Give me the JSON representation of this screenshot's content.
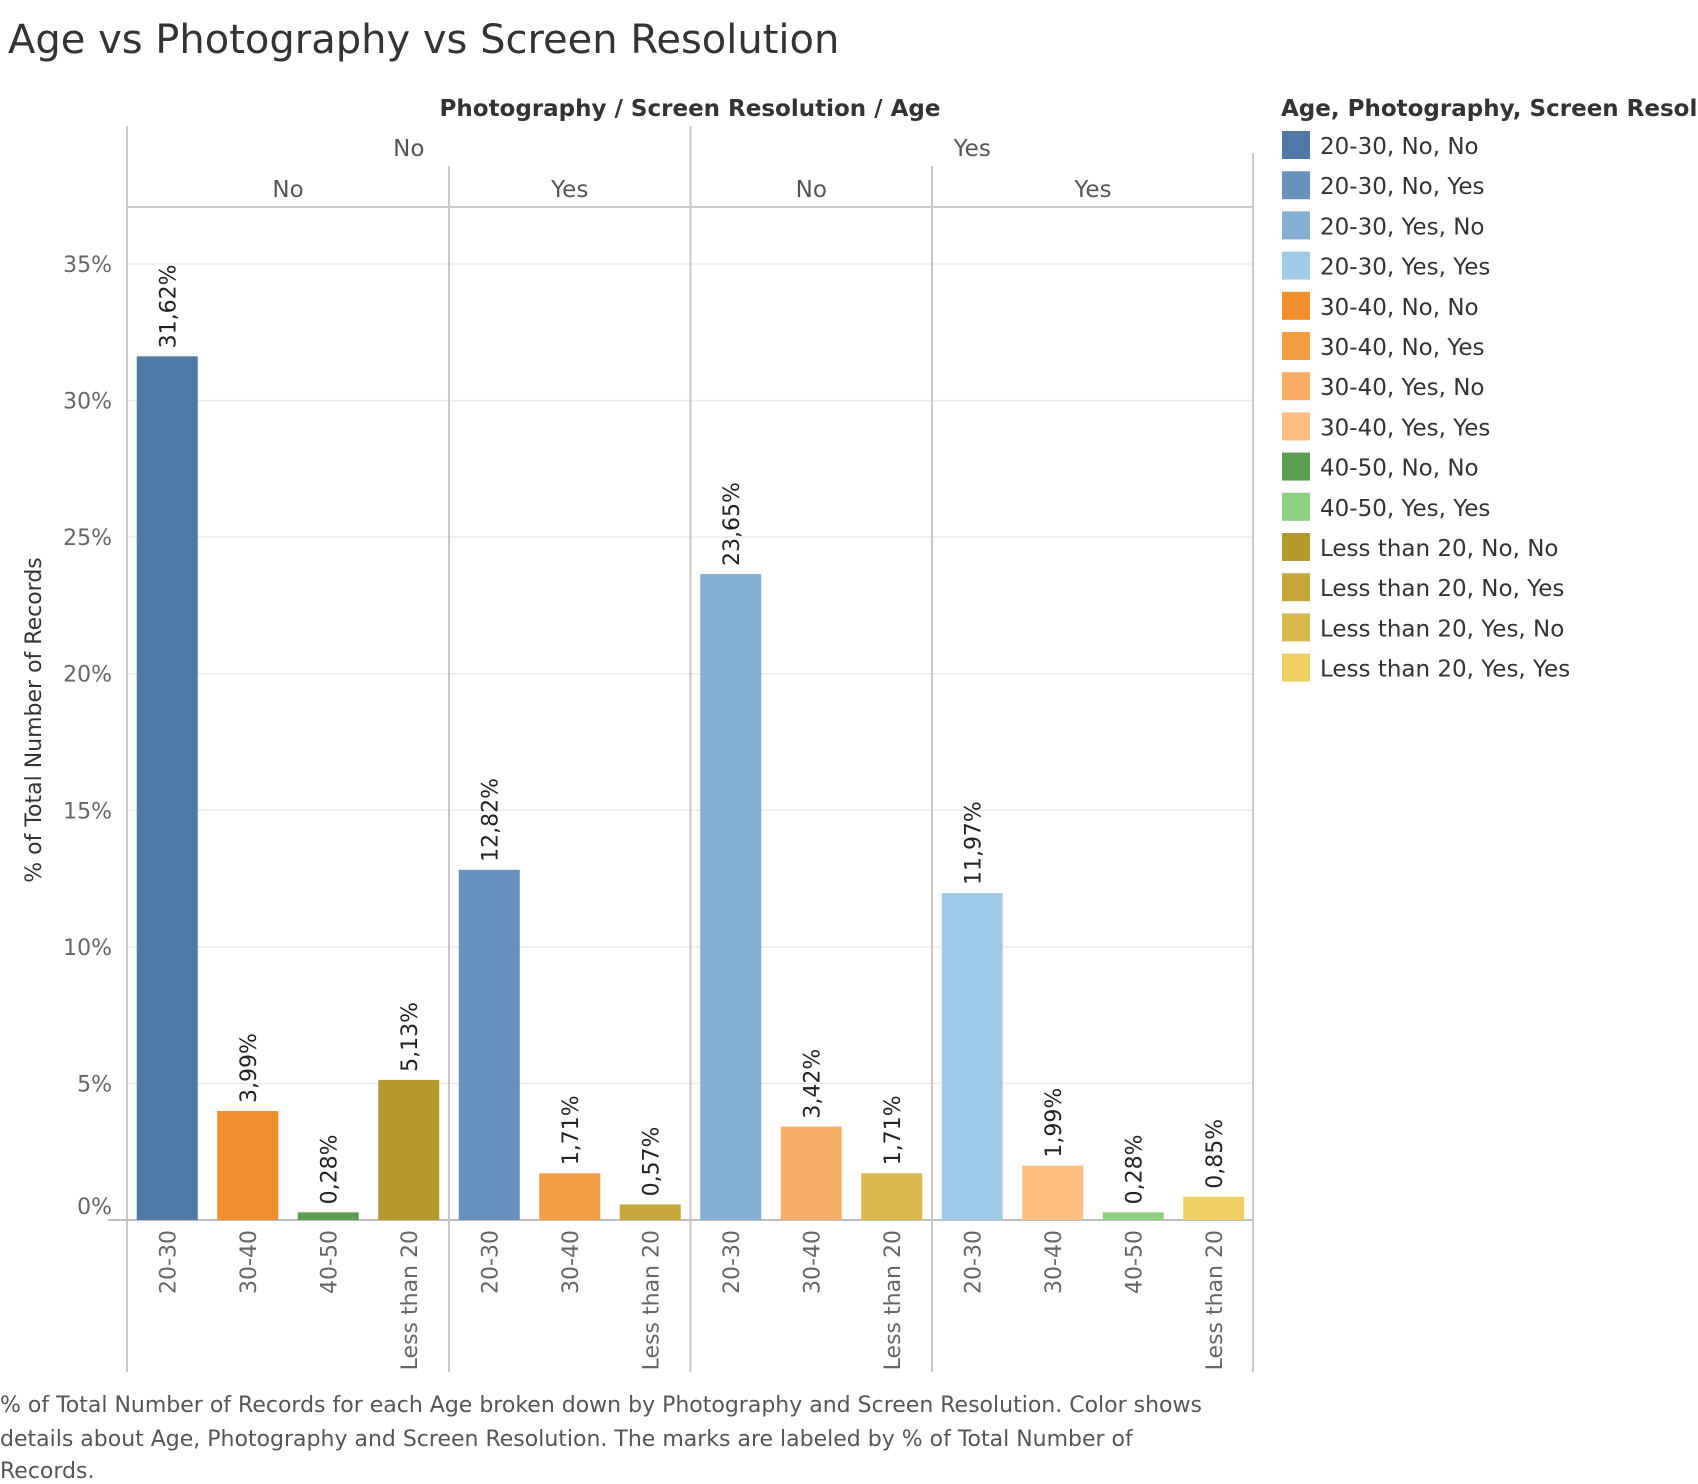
{
  "title": "Age vs Photography vs Screen Resolution",
  "caption_lines": [
    "% of Total Number of Records for each Age broken down by Photography and Screen Resolution.  Color shows",
    "details about Age, Photography and Screen Resolution.  The marks are labeled by % of Total Number of",
    "Records."
  ],
  "chart_data": {
    "type": "bar",
    "title": "Age vs Photography vs Screen Resolution",
    "column_header": "Photography / Screen Resolution / Age",
    "ylabel": "% of Total Number of Records",
    "ylim": [
      0,
      37
    ],
    "yticks": [
      {
        "value": 0,
        "label": "0%"
      },
      {
        "value": 5,
        "label": "5%"
      },
      {
        "value": 10,
        "label": "10%"
      },
      {
        "value": 15,
        "label": "15%"
      },
      {
        "value": 20,
        "label": "20%"
      },
      {
        "value": 25,
        "label": "25%"
      },
      {
        "value": 30,
        "label": "30%"
      },
      {
        "value": 35,
        "label": "35%"
      }
    ],
    "grid": true,
    "legend_position": "right",
    "legend_title": "Age, Photography, Screen Resolution",
    "legend": [
      {
        "label": "20-30, No, No",
        "color": "#4e79a7"
      },
      {
        "label": "20-30, No, Yes",
        "color": "#6892be"
      },
      {
        "label": "20-30, Yes, No",
        "color": "#84b0d3"
      },
      {
        "label": "20-30, Yes, Yes",
        "color": "#a0cbe8"
      },
      {
        "label": "30-40, No, No",
        "color": "#f28e2b"
      },
      {
        "label": "30-40, No, Yes",
        "color": "#f59d45"
      },
      {
        "label": "30-40, Yes, No",
        "color": "#f8ad66"
      },
      {
        "label": "30-40, Yes, Yes",
        "color": "#ffbe7d"
      },
      {
        "label": "40-50, No, No",
        "color": "#59a14f"
      },
      {
        "label": "40-50, Yes, Yes",
        "color": "#8cd17d"
      },
      {
        "label": "Less than 20, No, No",
        "color": "#b6992d"
      },
      {
        "label": "Less than 20, No, Yes",
        "color": "#c7a73a"
      },
      {
        "label": "Less than 20, Yes, No",
        "color": "#dbb84e"
      },
      {
        "label": "Less than 20, Yes, Yes",
        "color": "#f1ce63"
      }
    ],
    "panels": [
      {
        "photography": "No",
        "screen_resolution": "No",
        "bars": [
          {
            "age": "20-30",
            "value": 31.62,
            "label": "31,62%",
            "color": "#4e79a7"
          },
          {
            "age": "30-40",
            "value": 3.99,
            "label": "3,99%",
            "color": "#f28e2b"
          },
          {
            "age": "40-50",
            "value": 0.28,
            "label": "0,28%",
            "color": "#59a14f"
          },
          {
            "age": "Less than 20",
            "value": 5.13,
            "label": "5,13%",
            "color": "#b6992d"
          }
        ]
      },
      {
        "photography": "No",
        "screen_resolution": "Yes",
        "bars": [
          {
            "age": "20-30",
            "value": 12.82,
            "label": "12,82%",
            "color": "#6892be"
          },
          {
            "age": "30-40",
            "value": 1.71,
            "label": "1,71%",
            "color": "#f59d45"
          },
          {
            "age": "Less than 20",
            "value": 0.57,
            "label": "0,57%",
            "color": "#c7a73a"
          }
        ]
      },
      {
        "photography": "Yes",
        "screen_resolution": "No",
        "bars": [
          {
            "age": "20-30",
            "value": 23.65,
            "label": "23,65%",
            "color": "#84b0d3"
          },
          {
            "age": "30-40",
            "value": 3.42,
            "label": "3,42%",
            "color": "#f8ad66"
          },
          {
            "age": "Less than 20",
            "value": 1.71,
            "label": "1,71%",
            "color": "#dbb84e"
          }
        ]
      },
      {
        "photography": "Yes",
        "screen_resolution": "Yes",
        "bars": [
          {
            "age": "20-30",
            "value": 11.97,
            "label": "11,97%",
            "color": "#a0cbe8"
          },
          {
            "age": "30-40",
            "value": 1.99,
            "label": "1,99%",
            "color": "#ffbe7d"
          },
          {
            "age": "40-50",
            "value": 0.28,
            "label": "0,28%",
            "color": "#8cd17d"
          },
          {
            "age": "Less than 20",
            "value": 0.85,
            "label": "0,85%",
            "color": "#f1ce63"
          }
        ]
      }
    ]
  }
}
